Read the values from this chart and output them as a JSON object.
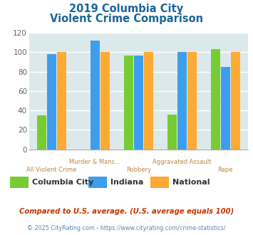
{
  "title_line1": "2019 Columbia City",
  "title_line2": "Violent Crime Comparison",
  "categories": [
    "All Violent Crime",
    "Murder & Mans...",
    "Robbery",
    "Aggravated Assault",
    "Rape"
  ],
  "groups": [
    {
      "label": "Columbia City",
      "color": "#77cc33",
      "values": [
        35,
        null,
        97,
        36,
        103
      ]
    },
    {
      "label": "Indiana",
      "color": "#3d9eee",
      "values": [
        98,
        112,
        97,
        100,
        85
      ]
    },
    {
      "label": "National",
      "color": "#ffaa33",
      "values": [
        100,
        100,
        100,
        100,
        100
      ]
    }
  ],
  "ylim": [
    0,
    120
  ],
  "yticks": [
    0,
    20,
    40,
    60,
    80,
    100,
    120
  ],
  "background_color": "#ffffff",
  "plot_bg_color": "#dce9ea",
  "title_color": "#1a6699",
  "axis_label_color": "#bb8844",
  "legend_label_color": "#333333",
  "footnote1": "Compared to U.S. average. (U.S. average equals 100)",
  "footnote2": "© 2025 CityRating.com - https://www.cityrating.com/crime-statistics/",
  "footnote1_color": "#cc3300",
  "footnote2_color": "#5588bb"
}
